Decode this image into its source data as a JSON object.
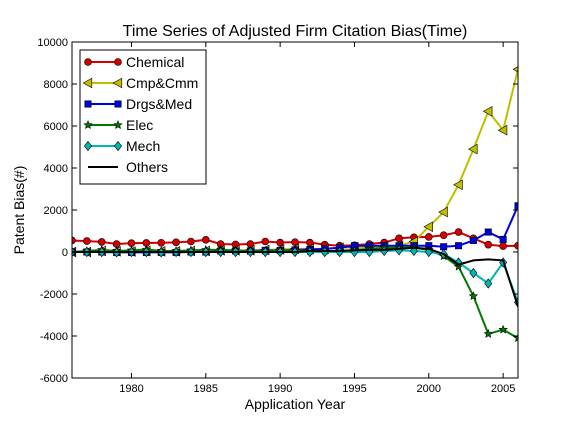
{
  "chart_data": {
    "type": "line",
    "title": "Time Series of Adjusted Firm Citation Bias(Time)",
    "xlabel": "Application Year",
    "ylabel": "Patent Bias(#)",
    "xlim": [
      1976,
      2006
    ],
    "ylim": [
      -6000,
      10000
    ],
    "xticks": [
      1980,
      1985,
      1990,
      1995,
      2000,
      2005
    ],
    "yticks": [
      -6000,
      -4000,
      -2000,
      0,
      2000,
      4000,
      6000,
      8000,
      10000
    ],
    "legend_position": "top-left",
    "grid": false,
    "x": [
      1976,
      1977,
      1978,
      1979,
      1980,
      1981,
      1982,
      1983,
      1984,
      1985,
      1986,
      1987,
      1988,
      1989,
      1990,
      1991,
      1992,
      1993,
      1994,
      1995,
      1996,
      1997,
      1998,
      1999,
      2000,
      2001,
      2002,
      2003,
      2004,
      2005,
      2006
    ],
    "series": [
      {
        "name": "Chemical",
        "color": "#d40000",
        "marker": "circle",
        "values": [
          550,
          520,
          480,
          380,
          420,
          430,
          440,
          460,
          500,
          580,
          380,
          360,
          380,
          500,
          450,
          470,
          450,
          350,
          300,
          320,
          380,
          450,
          650,
          700,
          720,
          800,
          950,
          650,
          350,
          280,
          300
        ]
      },
      {
        "name": "Cmp&Cmm",
        "color": "#bfbf00",
        "marker": "triangle-left",
        "values": [
          0,
          0,
          50,
          30,
          20,
          50,
          30,
          30,
          50,
          50,
          80,
          80,
          80,
          100,
          120,
          150,
          150,
          150,
          200,
          220,
          250,
          280,
          300,
          500,
          1200,
          1900,
          3200,
          4900,
          6700,
          5800,
          8700
        ]
      },
      {
        "name": "Drgs&Med",
        "color": "#0000e0",
        "marker": "square",
        "values": [
          0,
          0,
          0,
          -20,
          -20,
          -20,
          -20,
          -20,
          0,
          0,
          50,
          50,
          50,
          80,
          80,
          100,
          120,
          150,
          200,
          300,
          300,
          300,
          300,
          300,
          300,
          250,
          300,
          550,
          950,
          600,
          2200
        ]
      },
      {
        "name": "Elec",
        "color": "#007a00",
        "marker": "star",
        "values": [
          0,
          50,
          100,
          50,
          80,
          120,
          50,
          50,
          80,
          100,
          100,
          80,
          50,
          50,
          80,
          80,
          50,
          50,
          50,
          100,
          150,
          200,
          200,
          200,
          100,
          -200,
          -700,
          -2100,
          -3900,
          -3700,
          -4100
        ]
      },
      {
        "name": "Mech",
        "color": "#00b5b5",
        "marker": "diamond",
        "values": [
          0,
          0,
          0,
          -20,
          0,
          0,
          -20,
          0,
          0,
          0,
          0,
          0,
          0,
          0,
          0,
          0,
          0,
          0,
          0,
          0,
          0,
          50,
          80,
          50,
          0,
          -100,
          -500,
          -1000,
          -1500,
          -500,
          -2400
        ]
      },
      {
        "name": "Others",
        "color": "#000000",
        "marker": "none",
        "values": [
          0,
          0,
          0,
          0,
          0,
          0,
          0,
          0,
          0,
          0,
          0,
          0,
          0,
          0,
          0,
          0,
          50,
          50,
          50,
          80,
          100,
          100,
          150,
          200,
          150,
          -100,
          -600,
          -400,
          -350,
          -400,
          -2600
        ]
      }
    ]
  }
}
